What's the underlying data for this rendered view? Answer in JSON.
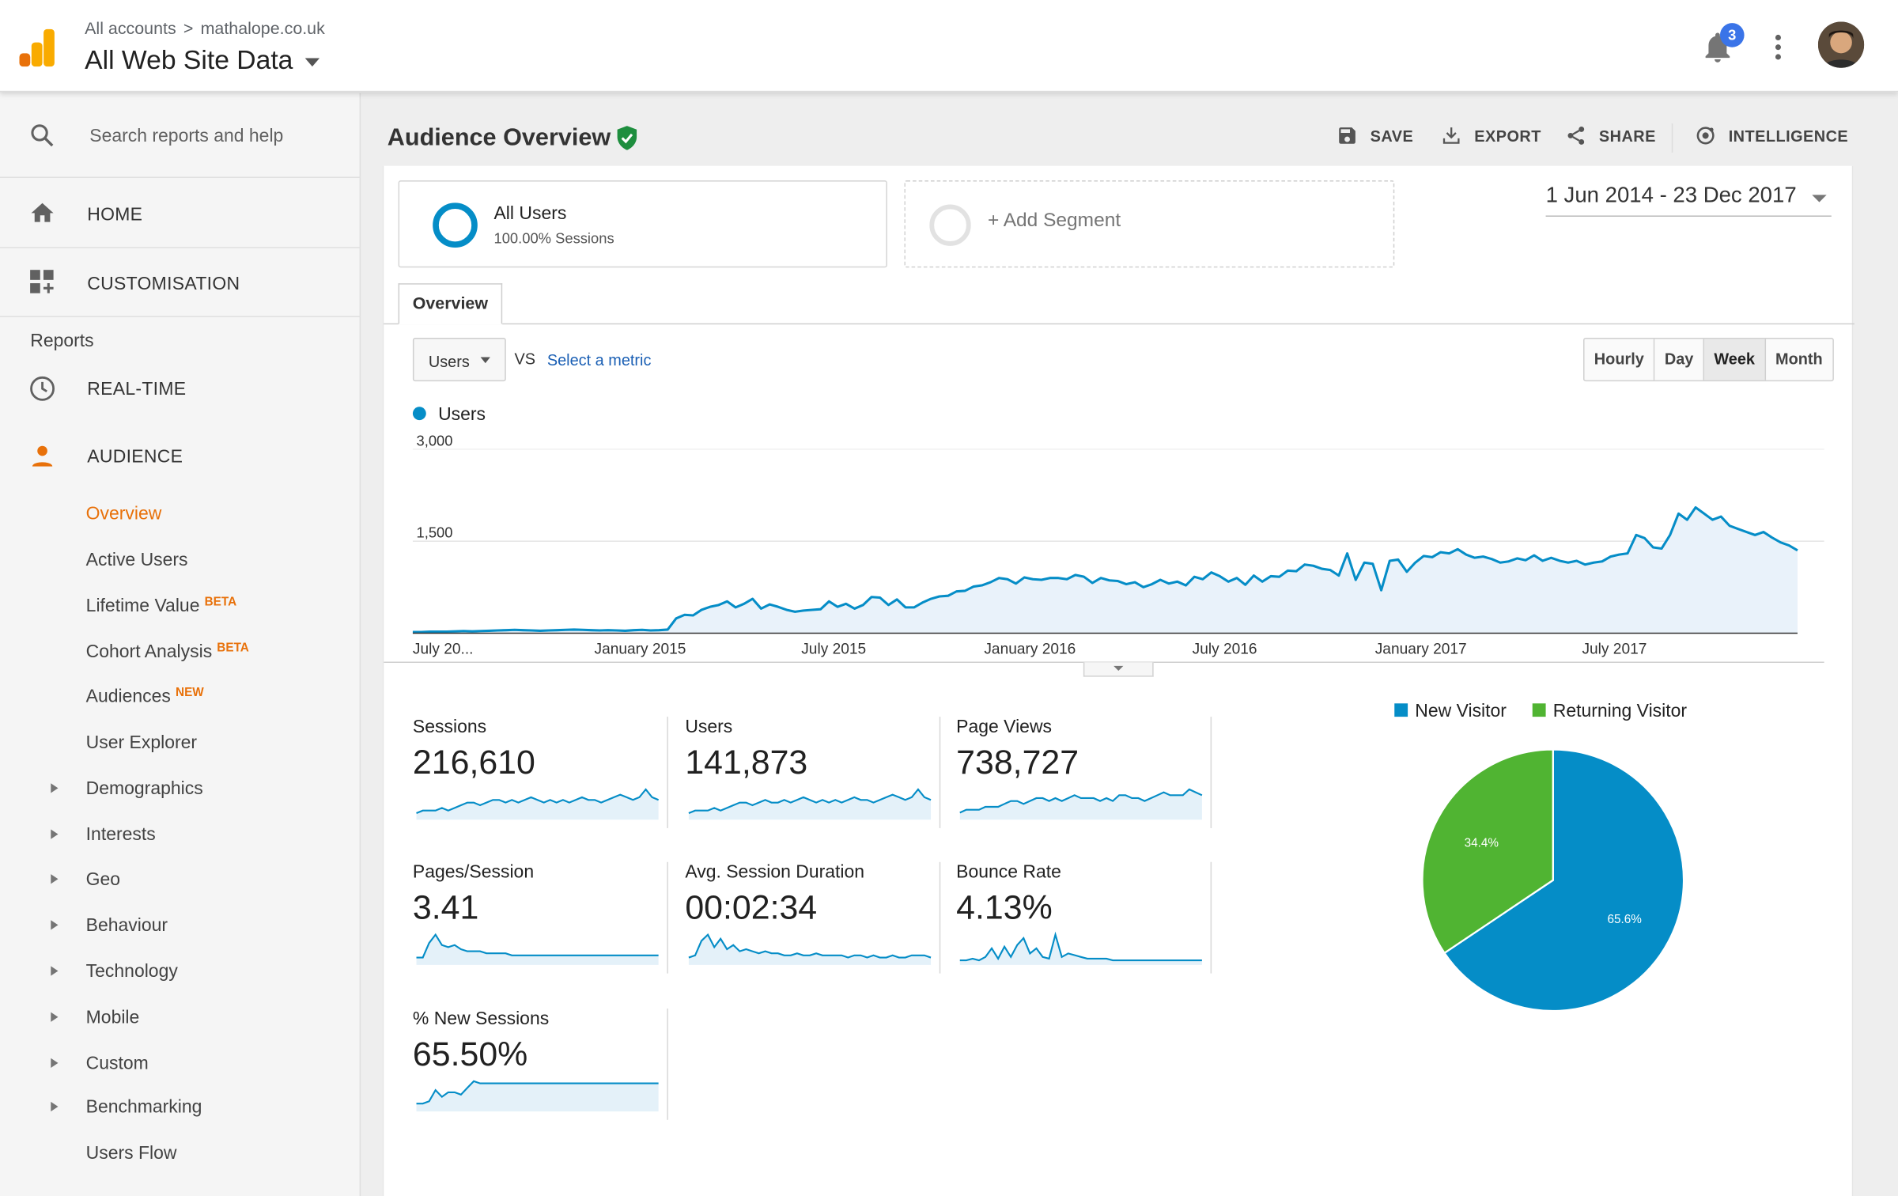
{
  "header": {
    "breadcrumb_root": "All accounts",
    "breadcrumb_sep": ">",
    "breadcrumb_property": "mathalope.co.uk",
    "view_name": "All Web Site Data",
    "notification_count": "3"
  },
  "sidebar": {
    "search_placeholder": "Search reports and help",
    "home": "HOME",
    "customisation": "CUSTOMISATION",
    "reports_header": "Reports",
    "realtime": "REAL-TIME",
    "audience": "AUDIENCE",
    "audience_items": [
      {
        "label": "Overview",
        "tag": ""
      },
      {
        "label": "Active Users",
        "tag": ""
      },
      {
        "label": "Lifetime Value",
        "tag": "BETA"
      },
      {
        "label": "Cohort Analysis",
        "tag": "BETA"
      },
      {
        "label": "Audiences",
        "tag": "NEW"
      },
      {
        "label": "User Explorer",
        "tag": ""
      },
      {
        "label": "Demographics",
        "tag": ""
      },
      {
        "label": "Interests",
        "tag": ""
      },
      {
        "label": "Geo",
        "tag": ""
      },
      {
        "label": "Behaviour",
        "tag": ""
      },
      {
        "label": "Technology",
        "tag": ""
      },
      {
        "label": "Mobile",
        "tag": ""
      },
      {
        "label": "Custom",
        "tag": ""
      },
      {
        "label": "Benchmarking",
        "tag": ""
      },
      {
        "label": "Users Flow",
        "tag": ""
      }
    ]
  },
  "report": {
    "title": "Audience Overview",
    "actions": {
      "save": "SAVE",
      "export": "EXPORT",
      "share": "SHARE",
      "intelligence": "INTELLIGENCE"
    },
    "segment_all_users": "All Users",
    "segment_all_users_sub": "100.00% Sessions",
    "add_segment": "+ Add Segment",
    "date_range": "1 Jun 2014 - 23 Dec 2017",
    "tab_overview": "Overview",
    "metric_selected": "Users",
    "vs": "VS",
    "select_metric": "Select a metric",
    "periods": [
      "Hourly",
      "Day",
      "Week",
      "Month"
    ],
    "period_selected": "Week",
    "legend_users": "Users"
  },
  "colors": {
    "accent_orange": "#e8710a",
    "series_blue": "#058dc7",
    "returning_green": "#50b432",
    "link_blue": "#1a5fb4"
  },
  "chart_data": [
    {
      "type": "area",
      "series": [
        {
          "name": "Users",
          "values": [
            20,
            20,
            25,
            25,
            25,
            30,
            35,
            30,
            35,
            40,
            45,
            50,
            55,
            50,
            45,
            40,
            45,
            50,
            55,
            60,
            55,
            50,
            45,
            50,
            45,
            40,
            50,
            55,
            45,
            50,
            60,
            240,
            300,
            290,
            380,
            430,
            460,
            520,
            420,
            480,
            560,
            400,
            470,
            430,
            380,
            350,
            370,
            380,
            390,
            520,
            430,
            480,
            400,
            460,
            590,
            580,
            460,
            550,
            420,
            420,
            500,
            560,
            600,
            610,
            680,
            690,
            760,
            780,
            830,
            900,
            880,
            810,
            910,
            880,
            870,
            900,
            900,
            880,
            950,
            920,
            820,
            900,
            860,
            850,
            800,
            830,
            750,
            800,
            870,
            810,
            840,
            780,
            920,
            880,
            990,
            930,
            840,
            900,
            790,
            940,
            840,
            930,
            920,
            1020,
            1010,
            1120,
            1100,
            1050,
            1030,
            940,
            1300,
            870,
            1150,
            1130,
            700,
            1180,
            1200,
            1000,
            1150,
            1260,
            1240,
            1320,
            1300,
            1370,
            1280,
            1230,
            1250,
            1210,
            1150,
            1170,
            1220,
            1190,
            1270,
            1180,
            1230,
            1180,
            1150,
            1180,
            1120,
            1150,
            1170,
            1250,
            1280,
            1300,
            1600,
            1550,
            1400,
            1380,
            1600,
            1950,
            1850,
            2050,
            1950,
            1850,
            1900,
            1750,
            1700,
            1650,
            1600,
            1650,
            1560,
            1480,
            1430,
            1350
          ]
        }
      ],
      "x_start": "2014-06-01",
      "x_end": "2017-12-23",
      "x_tick_labels": [
        "July 20...",
        "January 2015",
        "July 2015",
        "January 2016",
        "July 2016",
        "January 2017",
        "July 2017"
      ],
      "y_tick_labels": [
        "3,000",
        "1,500"
      ],
      "ylim": [
        0,
        3000
      ],
      "grid": true
    },
    {
      "type": "pie",
      "categories": [
        "New Visitor",
        "Returning Visitor"
      ],
      "values": [
        65.6,
        34.4
      ],
      "labels": [
        "65.6%",
        "34.4%"
      ],
      "legend": "top"
    }
  ],
  "tiles": [
    {
      "name": "Sessions",
      "value": "216,610",
      "spark": [
        2,
        3,
        3,
        3,
        4,
        3,
        4,
        5,
        6,
        6,
        5,
        6,
        7,
        7,
        6,
        7,
        6,
        7,
        8,
        7,
        6,
        7,
        6,
        7,
        6,
        7,
        8,
        7,
        7,
        6,
        7,
        8,
        9,
        8,
        7,
        8,
        11,
        8,
        7
      ]
    },
    {
      "name": "Users",
      "value": "141,873",
      "spark": [
        2,
        3,
        3,
        3,
        4,
        3,
        4,
        5,
        6,
        6,
        5,
        6,
        7,
        6,
        6,
        7,
        6,
        7,
        8,
        7,
        6,
        7,
        6,
        7,
        6,
        7,
        8,
        7,
        7,
        6,
        7,
        8,
        9,
        8,
        7,
        8,
        11,
        8,
        7
      ]
    },
    {
      "name": "Page Views",
      "value": "738,727",
      "spark": [
        2,
        3,
        3,
        3,
        4,
        4,
        4,
        5,
        6,
        6,
        5,
        6,
        7,
        7,
        6,
        7,
        6,
        7,
        8,
        7,
        7,
        7,
        6,
        7,
        6,
        8,
        8,
        7,
        7,
        6,
        7,
        8,
        9,
        8,
        8,
        8,
        10,
        9,
        8
      ]
    },
    {
      "name": "Pages/Session",
      "value": "3.41",
      "spark": [
        3,
        3,
        10,
        14,
        9,
        8,
        9,
        7,
        6,
        6,
        6,
        5,
        5,
        5,
        5,
        4,
        4,
        4,
        4,
        4,
        4,
        4,
        4,
        4,
        4,
        4,
        4,
        4,
        4,
        4,
        4,
        4,
        4,
        4,
        4,
        4,
        4,
        4,
        4
      ]
    },
    {
      "name": "Avg. Session Duration",
      "value": "00:02:34",
      "spark": [
        3,
        4,
        11,
        14,
        8,
        12,
        7,
        9,
        6,
        7,
        6,
        5,
        6,
        5,
        5,
        4,
        4,
        5,
        4,
        4,
        5,
        4,
        4,
        4,
        4,
        3,
        4,
        4,
        3,
        4,
        3,
        3,
        4,
        3,
        3,
        4,
        4,
        4,
        3
      ]
    },
    {
      "name": "Bounce Rate",
      "value": "4.13%",
      "spark": [
        2,
        2,
        3,
        2,
        4,
        9,
        3,
        10,
        4,
        11,
        15,
        6,
        9,
        4,
        3,
        17,
        4,
        6,
        5,
        4,
        3,
        3,
        3,
        3,
        2,
        2,
        2,
        2,
        2,
        2,
        2,
        2,
        2,
        2,
        2,
        2,
        2,
        2,
        2
      ]
    },
    {
      "name": "% New Sessions",
      "value": "65.50%",
      "spark": [
        3,
        3,
        4,
        9,
        6,
        8,
        8,
        7,
        10,
        13,
        12,
        12,
        12,
        12,
        12,
        12,
        12,
        12,
        12,
        12,
        12,
        12,
        12,
        12,
        12,
        12,
        12,
        12,
        12,
        12,
        12,
        12,
        12,
        12,
        12,
        12,
        12,
        12,
        12
      ]
    }
  ]
}
